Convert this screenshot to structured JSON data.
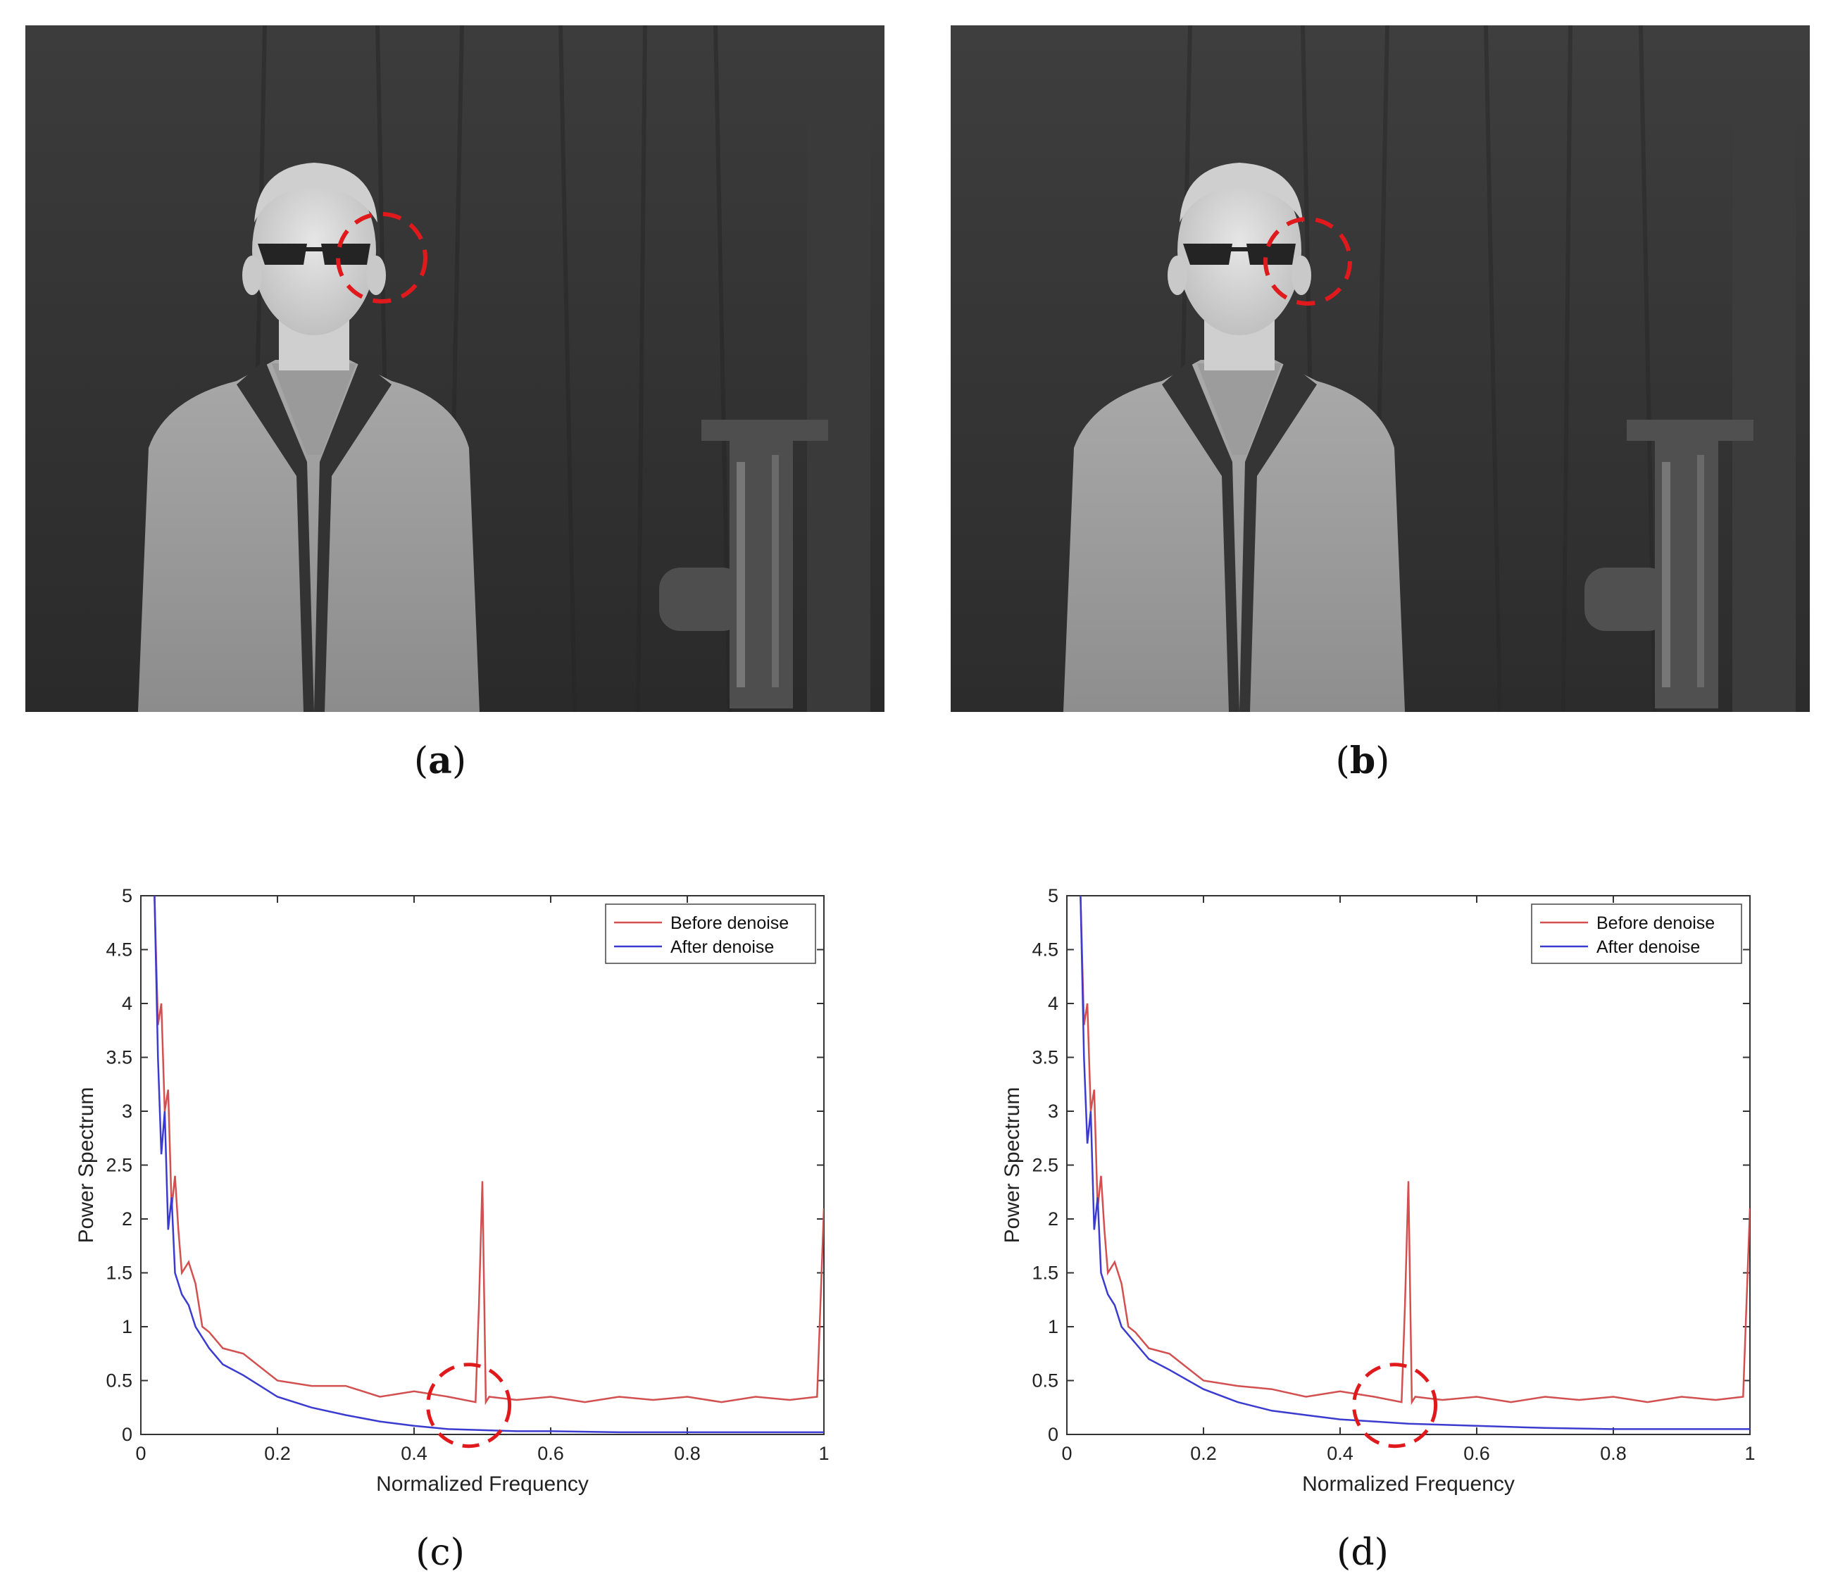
{
  "panels": [
    {
      "id": "a",
      "caption": "(a)",
      "label": "a",
      "circle_label": ""
    },
    {
      "id": "b",
      "caption": "(b)",
      "label": "b",
      "circle_label": ""
    }
  ],
  "chart_captions": {
    "c": "c",
    "d": "d"
  },
  "colors": {
    "before": "#d2504f",
    "after": "#3b3bcf",
    "highlight": "#e0191d"
  },
  "chart_data": [
    {
      "id": "c",
      "type": "line",
      "title": "",
      "xlabel": "Normalized Frequency",
      "ylabel": "Power Spectrum",
      "xlim": [
        0,
        1
      ],
      "ylim": [
        0,
        5
      ],
      "xticks": [
        "0",
        "0.2",
        "0.4",
        "0.6",
        "0.8",
        "1"
      ],
      "yticks": [
        "0",
        "0.5",
        "1",
        "1.5",
        "2",
        "2.5",
        "3",
        "3.5",
        "4",
        "4.5",
        "5"
      ],
      "legend": {
        "placement": "top-right",
        "entries": [
          "Before denoise",
          "After denoise"
        ]
      },
      "series": [
        {
          "name": "Before denoise",
          "color": "#d2504f",
          "x": [
            0.02,
            0.025,
            0.03,
            0.035,
            0.04,
            0.045,
            0.05,
            0.055,
            0.06,
            0.07,
            0.08,
            0.09,
            0.1,
            0.12,
            0.15,
            0.2,
            0.25,
            0.3,
            0.35,
            0.4,
            0.45,
            0.49,
            0.495,
            0.5,
            0.505,
            0.51,
            0.55,
            0.6,
            0.65,
            0.7,
            0.75,
            0.8,
            0.85,
            0.9,
            0.95,
            0.99,
            1.0
          ],
          "y": [
            5.0,
            3.8,
            4.0,
            3.0,
            3.2,
            2.1,
            2.4,
            1.9,
            1.5,
            1.6,
            1.4,
            1.0,
            0.95,
            0.8,
            0.75,
            0.5,
            0.45,
            0.45,
            0.35,
            0.4,
            0.35,
            0.3,
            1.2,
            2.35,
            0.3,
            0.35,
            0.32,
            0.35,
            0.3,
            0.35,
            0.32,
            0.35,
            0.3,
            0.35,
            0.32,
            0.35,
            2.1
          ]
        },
        {
          "name": "After denoise",
          "color": "#3b3bcf",
          "x": [
            0.02,
            0.025,
            0.03,
            0.035,
            0.04,
            0.045,
            0.05,
            0.06,
            0.07,
            0.08,
            0.1,
            0.12,
            0.15,
            0.2,
            0.25,
            0.3,
            0.35,
            0.4,
            0.45,
            0.5,
            0.55,
            0.6,
            0.7,
            0.8,
            0.9,
            1.0
          ],
          "y": [
            5.0,
            3.5,
            2.6,
            3.0,
            1.9,
            2.2,
            1.5,
            1.3,
            1.2,
            1.0,
            0.8,
            0.65,
            0.55,
            0.35,
            0.25,
            0.18,
            0.12,
            0.08,
            0.05,
            0.04,
            0.03,
            0.03,
            0.02,
            0.02,
            0.02,
            0.02
          ]
        }
      ]
    },
    {
      "id": "d",
      "type": "line",
      "title": "",
      "xlabel": "Normalized Frequency",
      "ylabel": "Power Spectrum",
      "xlim": [
        0,
        1
      ],
      "ylim": [
        0,
        5
      ],
      "xticks": [
        "0",
        "0.2",
        "0.4",
        "0.6",
        "0.8",
        "1"
      ],
      "yticks": [
        "0",
        "0.5",
        "1",
        "1.5",
        "2",
        "2.5",
        "3",
        "3.5",
        "4",
        "4.5",
        "5"
      ],
      "legend": {
        "placement": "top-right",
        "entries": [
          "Before denoise",
          "After denoise"
        ]
      },
      "series": [
        {
          "name": "Before denoise",
          "color": "#d2504f",
          "x": [
            0.02,
            0.025,
            0.03,
            0.035,
            0.04,
            0.045,
            0.05,
            0.055,
            0.06,
            0.07,
            0.08,
            0.09,
            0.1,
            0.12,
            0.15,
            0.2,
            0.25,
            0.3,
            0.35,
            0.4,
            0.45,
            0.49,
            0.495,
            0.5,
            0.505,
            0.51,
            0.55,
            0.6,
            0.65,
            0.7,
            0.75,
            0.8,
            0.85,
            0.9,
            0.95,
            0.99,
            1.0
          ],
          "y": [
            5.0,
            3.8,
            4.0,
            3.0,
            3.2,
            2.1,
            2.4,
            1.9,
            1.5,
            1.6,
            1.4,
            1.0,
            0.95,
            0.8,
            0.75,
            0.5,
            0.45,
            0.42,
            0.35,
            0.4,
            0.35,
            0.3,
            1.2,
            2.35,
            0.3,
            0.35,
            0.32,
            0.35,
            0.3,
            0.35,
            0.32,
            0.35,
            0.3,
            0.35,
            0.32,
            0.35,
            2.1
          ]
        },
        {
          "name": "After denoise",
          "color": "#3b3bcf",
          "x": [
            0.02,
            0.025,
            0.03,
            0.035,
            0.04,
            0.045,
            0.05,
            0.06,
            0.07,
            0.08,
            0.1,
            0.12,
            0.15,
            0.2,
            0.25,
            0.3,
            0.35,
            0.4,
            0.45,
            0.5,
            0.55,
            0.6,
            0.7,
            0.8,
            0.9,
            1.0
          ],
          "y": [
            5.0,
            3.5,
            2.7,
            3.0,
            1.9,
            2.2,
            1.5,
            1.3,
            1.2,
            1.0,
            0.85,
            0.7,
            0.6,
            0.42,
            0.3,
            0.22,
            0.18,
            0.14,
            0.12,
            0.1,
            0.09,
            0.08,
            0.06,
            0.05,
            0.05,
            0.05
          ]
        }
      ]
    }
  ]
}
